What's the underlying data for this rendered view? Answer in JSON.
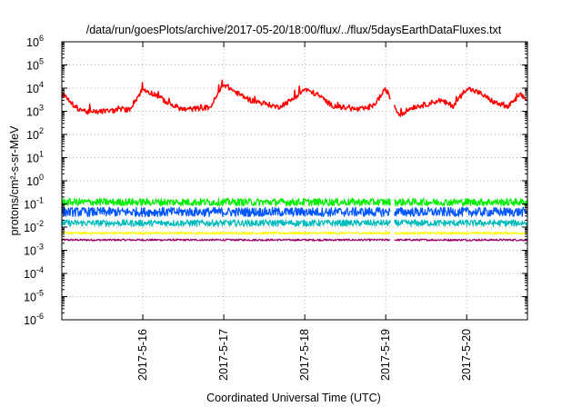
{
  "chart_data": {
    "type": "line",
    "title": "/data/run/goesPlots/archive/2017-05-20/18:00/flux/../flux/5daysEarthDataFluxes.txt",
    "xlabel": "Coordinated Universal Time (UTC)",
    "ylabel": "protons/cm²-s-sr-MeV",
    "yscale": "log",
    "ylim_exponent": [
      -6,
      6
    ],
    "y_tick_exponents": [
      -6,
      -5,
      -4,
      -3,
      -2,
      -1,
      0,
      1,
      2,
      3,
      4,
      5,
      6
    ],
    "xlim": [
      "2017-05-15 00:00",
      "2017-05-20 18:00"
    ],
    "x_ticks": [
      {
        "label": "2017-5-16",
        "date": "2017-05-16"
      },
      {
        "label": "2017-5-17",
        "date": "2017-05-17"
      },
      {
        "label": "2017-5-18",
        "date": "2017-05-18"
      },
      {
        "label": "2017-5-19",
        "date": "2017-05-19"
      },
      {
        "label": "2017-5-20",
        "date": "2017-05-20"
      }
    ],
    "grid": true,
    "gap": [
      "2017-05-19 01:30",
      "2017-05-19 02:30"
    ],
    "series": [
      {
        "color": "#ff0000",
        "x": [
          "2017-05-15 00:00",
          "2017-05-15 04:00",
          "2017-05-15 08:00",
          "2017-05-15 12:00",
          "2017-05-15 16:00",
          "2017-05-15 20:00",
          "2017-05-16 00:00",
          "2017-05-16 04:00",
          "2017-05-16 08:00",
          "2017-05-16 12:00",
          "2017-05-16 16:00",
          "2017-05-16 20:00",
          "2017-05-17 00:00",
          "2017-05-17 04:00",
          "2017-05-17 08:00",
          "2017-05-17 12:00",
          "2017-05-17 16:00",
          "2017-05-17 20:00",
          "2017-05-18 00:00",
          "2017-05-18 04:00",
          "2017-05-18 08:00",
          "2017-05-18 12:00",
          "2017-05-18 16:00",
          "2017-05-18 20:00",
          "2017-05-19 00:00",
          "2017-05-19 04:00",
          "2017-05-19 08:00",
          "2017-05-19 12:00",
          "2017-05-19 16:00",
          "2017-05-19 20:00",
          "2017-05-20 00:00",
          "2017-05-20 04:00",
          "2017-05-20 08:00",
          "2017-05-20 12:00",
          "2017-05-20 16:00",
          "2017-05-20 18:00"
        ],
        "y": [
          6000,
          1500,
          900,
          1000,
          1100,
          1200,
          9000,
          5000,
          2000,
          1200,
          1300,
          1500,
          15000,
          6000,
          3000,
          2200,
          1500,
          3000,
          9000,
          5000,
          1800,
          1400,
          1200,
          1500,
          9000,
          700,
          1500,
          2000,
          3000,
          1700,
          10000,
          6000,
          2500,
          1500,
          5000,
          3000
        ]
      },
      {
        "color": "#00ee00",
        "x": [
          "2017-05-15 00:00",
          "2017-05-20 18:00"
        ],
        "y": [
          0.12,
          0.12
        ]
      },
      {
        "color": "#0055ff",
        "x": [
          "2017-05-15 00:00",
          "2017-05-20 18:00"
        ],
        "y": [
          0.045,
          0.045
        ]
      },
      {
        "color": "#00bbbb",
        "x": [
          "2017-05-15 00:00",
          "2017-05-20 18:00"
        ],
        "y": [
          0.015,
          0.015
        ]
      },
      {
        "color": "#ffff00",
        "x": [
          "2017-05-15 00:00",
          "2017-05-20 18:00"
        ],
        "y": [
          0.0055,
          0.0055
        ]
      },
      {
        "color": "#990066",
        "x": [
          "2017-05-15 00:00",
          "2017-05-20 18:00"
        ],
        "y": [
          0.0028,
          0.0028
        ]
      }
    ]
  }
}
